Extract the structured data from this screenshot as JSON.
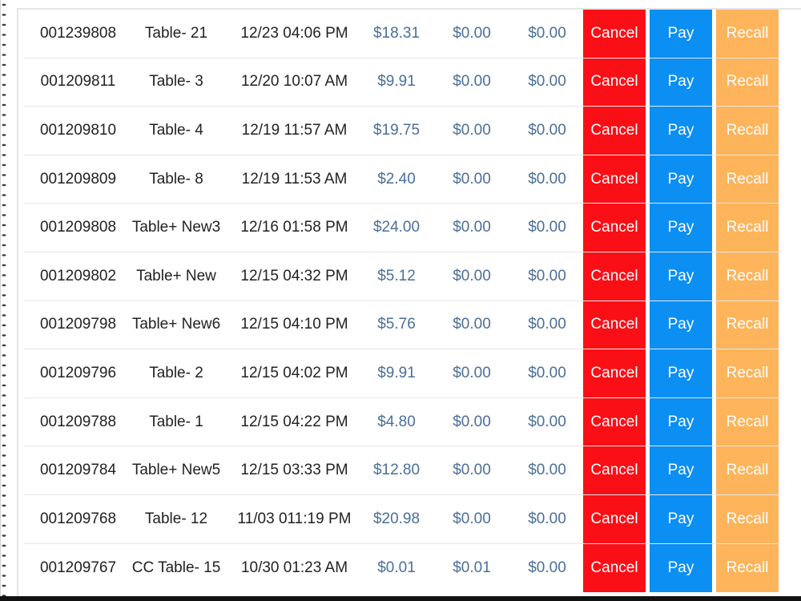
{
  "colors": {
    "cancel": "#fb0f16",
    "pay": "#0b8ff3",
    "recall": "#fdb45b"
  },
  "labels": {
    "cancel": "Cancel",
    "pay": "Pay",
    "recall": "Recall"
  },
  "orders": [
    {
      "id": "001239808",
      "table": "Table- 21",
      "time": "12/23 04:06 PM",
      "amount": "$18.31",
      "paid": "$0.00",
      "due": "$0.00"
    },
    {
      "id": "001209811",
      "table": "Table- 3",
      "time": "12/20 10:07 AM",
      "amount": "$9.91",
      "paid": "$0.00",
      "due": "$0.00"
    },
    {
      "id": "001209810",
      "table": "Table- 4",
      "time": "12/19 11:57 AM",
      "amount": "$19.75",
      "paid": "$0.00",
      "due": "$0.00"
    },
    {
      "id": "001209809",
      "table": "Table- 8",
      "time": "12/19 11:53 AM",
      "amount": "$2.40",
      "paid": "$0.00",
      "due": "$0.00"
    },
    {
      "id": "001209808",
      "table": "Table+ New3",
      "time": "12/16 01:58 PM",
      "amount": "$24.00",
      "paid": "$0.00",
      "due": "$0.00"
    },
    {
      "id": "001209802",
      "table": "Table+ New",
      "time": "12/15 04:32 PM",
      "amount": "$5.12",
      "paid": "$0.00",
      "due": "$0.00"
    },
    {
      "id": "001209798",
      "table": "Table+ New6",
      "time": "12/15 04:10 PM",
      "amount": "$5.76",
      "paid": "$0.00",
      "due": "$0.00"
    },
    {
      "id": "001209796",
      "table": "Table- 2",
      "time": "12/15 04:02 PM",
      "amount": "$9.91",
      "paid": "$0.00",
      "due": "$0.00"
    },
    {
      "id": "001209788",
      "table": "Table- 1",
      "time": "12/15 04:22 PM",
      "amount": "$4.80",
      "paid": "$0.00",
      "due": "$0.00"
    },
    {
      "id": "001209784",
      "table": "Table+ New5",
      "time": "12/15 03:33 PM",
      "amount": "$12.80",
      "paid": "$0.00",
      "due": "$0.00"
    },
    {
      "id": "001209768",
      "table": "Table- 12",
      "time": "11/03 011:19 PM",
      "amount": "$20.98",
      "paid": "$0.00",
      "due": "$0.00"
    },
    {
      "id": "001209767",
      "table": "CC  Table- 15",
      "time": "10/30 01:23 AM",
      "amount": "$0.01",
      "paid": "$0.01",
      "due": "$0.00"
    }
  ]
}
